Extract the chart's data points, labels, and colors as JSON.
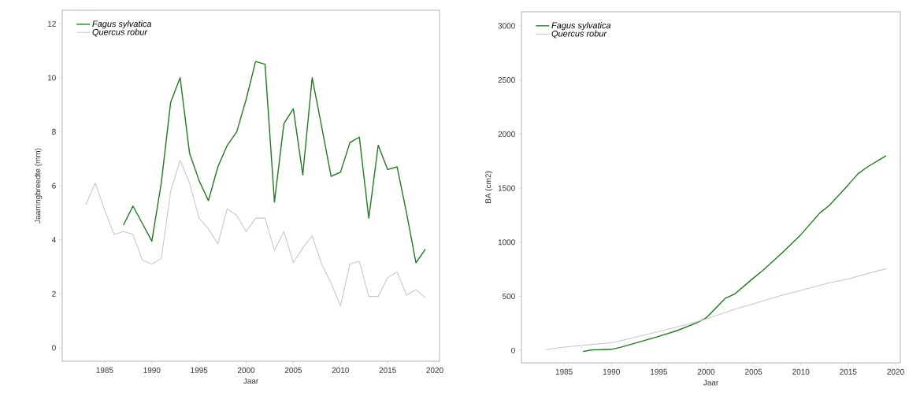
{
  "chart_data": [
    {
      "type": "line",
      "xlabel": "Jaar",
      "ylabel": "Jaarringbreedte (mm)",
      "xlim": [
        1980.5,
        2020.5
      ],
      "ylim": [
        -0.5,
        12.5
      ],
      "xticks": [
        1985,
        1990,
        1995,
        2000,
        2005,
        2010,
        2015,
        2020
      ],
      "yticks": [
        0,
        2,
        4,
        6,
        8,
        10,
        12
      ],
      "legend": "top left",
      "grid": false,
      "series": [
        {
          "name": "Fagus sylvatica",
          "color": "#1e7b1e",
          "x": [
            1987,
            1988,
            1989,
            1990,
            1991,
            1992,
            1993,
            1994,
            1995,
            1996,
            1997,
            1998,
            1999,
            2000,
            2001,
            2002,
            2003,
            2004,
            2005,
            2006,
            2007,
            2008,
            2009,
            2010,
            2011,
            2012,
            2013,
            2014,
            2015,
            2016,
            2017,
            2018,
            2019
          ],
          "values": [
            4.55,
            5.25,
            4.6,
            3.95,
            6.1,
            9.1,
            10.0,
            7.2,
            6.2,
            5.45,
            6.7,
            7.5,
            8.0,
            9.2,
            10.6,
            10.5,
            5.4,
            8.3,
            8.85,
            6.4,
            10.0,
            8.2,
            6.35,
            6.5,
            7.6,
            7.8,
            4.8,
            7.5,
            6.6,
            6.7,
            5.0,
            3.15,
            3.65
          ]
        },
        {
          "name": "Quercus robur",
          "color": "#c8c8c8",
          "x": [
            1983,
            1984,
            1985,
            1986,
            1987,
            1988,
            1989,
            1990,
            1991,
            1992,
            1993,
            1994,
            1995,
            1996,
            1997,
            1998,
            1999,
            2000,
            2001,
            2002,
            2003,
            2004,
            2005,
            2006,
            2007,
            2008,
            2009,
            2010,
            2011,
            2012,
            2013,
            2014,
            2015,
            2016,
            2017,
            2018,
            2019
          ],
          "values": [
            5.3,
            6.1,
            5.1,
            4.2,
            4.3,
            4.2,
            3.25,
            3.1,
            3.3,
            5.8,
            6.95,
            6.1,
            4.8,
            4.4,
            3.85,
            5.15,
            4.9,
            4.3,
            4.8,
            4.8,
            3.6,
            4.3,
            3.15,
            3.7,
            4.15,
            3.1,
            2.4,
            1.55,
            3.1,
            3.2,
            1.9,
            1.9,
            2.6,
            2.8,
            1.95,
            2.15,
            1.85
          ]
        }
      ]
    },
    {
      "type": "line",
      "xlabel": "Jaar",
      "ylabel": "BA (cm2)",
      "xlim": [
        1980.5,
        2020.5
      ],
      "ylim": [
        -115,
        3130
      ],
      "xticks": [
        1985,
        1990,
        1995,
        2000,
        2005,
        2010,
        2015,
        2020
      ],
      "yticks": [
        0,
        500,
        1000,
        1500,
        2000,
        2500,
        3000
      ],
      "legend": "top left",
      "grid": false,
      "series": [
        {
          "name": "Fagus sylvatica",
          "color": "#1e7b1e",
          "x": [
            1987,
            1988,
            1990,
            1991,
            1993,
            1995,
            1997,
            1999,
            2000,
            2002,
            2003,
            2005,
            2006,
            2008,
            2010,
            2012,
            2013,
            2015,
            2016,
            2017,
            2019
          ],
          "values": [
            -10,
            5,
            10,
            30,
            80,
            130,
            185,
            255,
            300,
            480,
            520,
            670,
            740,
            900,
            1070,
            1270,
            1340,
            1530,
            1630,
            1695,
            1800
          ]
        },
        {
          "name": "Quercus robur",
          "color": "#c8c8c8",
          "x": [
            1983,
            1985,
            1988,
            1990,
            1992,
            1995,
            1998,
            2000,
            2003,
            2005,
            2008,
            2010,
            2013,
            2015,
            2017,
            2019
          ],
          "values": [
            5,
            30,
            55,
            70,
            110,
            175,
            240,
            290,
            380,
            430,
            510,
            555,
            625,
            660,
            710,
            755
          ]
        }
      ]
    }
  ]
}
